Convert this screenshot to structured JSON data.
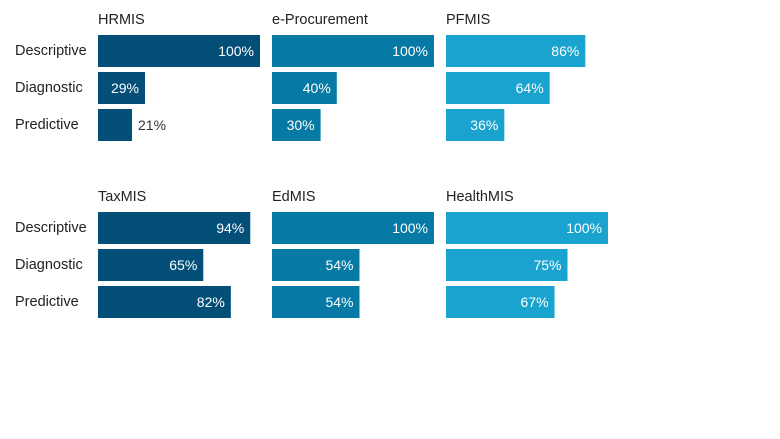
{
  "chart_data": {
    "type": "bar",
    "orientation": "horizontal",
    "value_format": "percent",
    "xlim": [
      0,
      100
    ],
    "grid": false,
    "legend": "none",
    "row_categories": [
      "Descriptive",
      "Diagnostic",
      "Predictive"
    ],
    "panels": [
      {
        "title": "HRMIS",
        "color": "#034f78",
        "values": [
          100,
          29,
          21
        ],
        "labels": [
          "100%",
          "29%",
          "21%"
        ]
      },
      {
        "title": "e-Procurement",
        "color": "#0679a4",
        "values": [
          100,
          40,
          30
        ],
        "labels": [
          "100%",
          "40%",
          "30%"
        ]
      },
      {
        "title": "PFMIS",
        "color": "#1aa3cf",
        "values": [
          86,
          64,
          36
        ],
        "labels": [
          "86%",
          "64%",
          "36%"
        ]
      },
      {
        "title": "TaxMIS",
        "color": "#034f78",
        "values": [
          94,
          65,
          82
        ],
        "labels": [
          "94%",
          "65%",
          "82%"
        ]
      },
      {
        "title": "EdMIS",
        "color": "#0679a4",
        "values": [
          100,
          54,
          54
        ],
        "labels": [
          "100%",
          "54%",
          "54%"
        ]
      },
      {
        "title": "HealthMIS",
        "color": "#1aa3cf",
        "values": [
          100,
          75,
          67
        ],
        "labels": [
          "100%",
          "75%",
          "67%"
        ]
      }
    ]
  }
}
